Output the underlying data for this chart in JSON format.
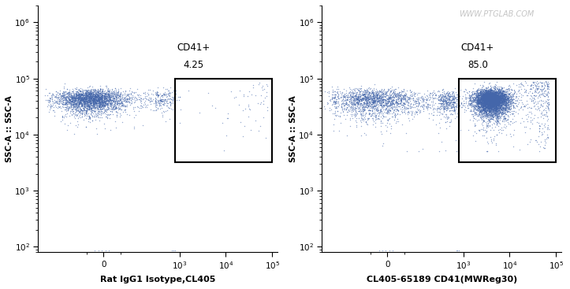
{
  "panel1": {
    "xlabel": "Rat IgG1 Isotype,CL405",
    "ylabel": "SSC-A :: SSC-A",
    "gate_label": "CD41+",
    "gate_value": "4.25",
    "gate_xmin": 800,
    "gate_xmax": 100000,
    "gate_ymin": 3200,
    "gate_ymax": 100000
  },
  "panel2": {
    "xlabel": "CL405-65189 CD41(MWReg30)",
    "ylabel": "SSC-A :: SSC-A",
    "gate_label": "CD41+",
    "gate_value": "85.0",
    "gate_xmin": 800,
    "gate_xmax": 100000,
    "gate_ymin": 3200,
    "gate_ymax": 100000
  },
  "watermark": "WWW.PTGLAB.COM",
  "xlim_left": -600,
  "xlim_right": 130000,
  "ylim_bottom": 80,
  "ylim_top": 2000000,
  "background_color": "#ffffff",
  "dot_color_blue": "#4466aa"
}
